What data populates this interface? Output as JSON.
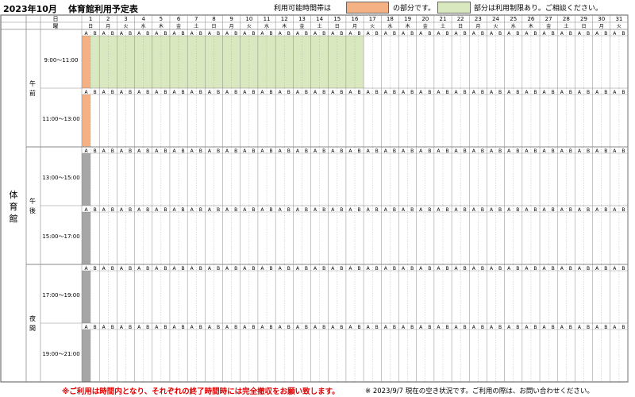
{
  "header": {
    "month": "2023年10月",
    "title": "体育館利用予定表",
    "legend_prefix": "利用可能時間帯は",
    "legend_available_text": "の部分です。",
    "legend_limited_text": "部分は利用制限あり。ご相談ください。"
  },
  "colors": {
    "available": "#f4b183",
    "limited": "#d9e8bf",
    "unavailable": "#a6a6a6",
    "grid": "#888888"
  },
  "table": {
    "day_header": "日",
    "weekday_header": "曜",
    "facility": "体育館",
    "slot_labels": [
      "A",
      "B"
    ],
    "days": [
      "1",
      "2",
      "3",
      "4",
      "5",
      "6",
      "7",
      "8",
      "9",
      "10",
      "11",
      "12",
      "13",
      "14",
      "15",
      "16",
      "17",
      "18",
      "19",
      "20",
      "21",
      "22",
      "23",
      "24",
      "25",
      "26",
      "27",
      "28",
      "29",
      "30",
      "31"
    ],
    "weekdays": [
      "日",
      "月",
      "火",
      "水",
      "木",
      "金",
      "土",
      "日",
      "月",
      "火",
      "水",
      "木",
      "金",
      "土",
      "日",
      "月",
      "火",
      "水",
      "木",
      "金",
      "土",
      "日",
      "月",
      "火",
      "水",
      "木",
      "金",
      "土",
      "日",
      "月",
      "火"
    ],
    "periods": [
      {
        "name": "午前",
        "rows": [
          {
            "time": "9:00～11:00",
            "status": "OLLLLLLLLLLLLLLLLLLLLLLLLLLLLLLL"
          },
          {
            "time": "11:00～13:00",
            "status": "O"
          }
        ]
      },
      {
        "name": "午後",
        "rows": [
          {
            "time": "13:00～15:00",
            "status": "x"
          },
          {
            "time": "15:00～17:00",
            "status": "x"
          }
        ]
      },
      {
        "name": "夜間",
        "rows": [
          {
            "time": "17:00～19:00",
            "status": "x"
          },
          {
            "time": "19:00～21:00",
            "status": "x"
          }
        ]
      }
    ]
  },
  "footer": {
    "notice": "※ご利用は時間内となり、それぞれの終了時間時には完全撤収をお願い致します。",
    "status_note": "※ 2023/9/7 現在の空き状況です。ご利用の際は、お問い合わせください。"
  }
}
